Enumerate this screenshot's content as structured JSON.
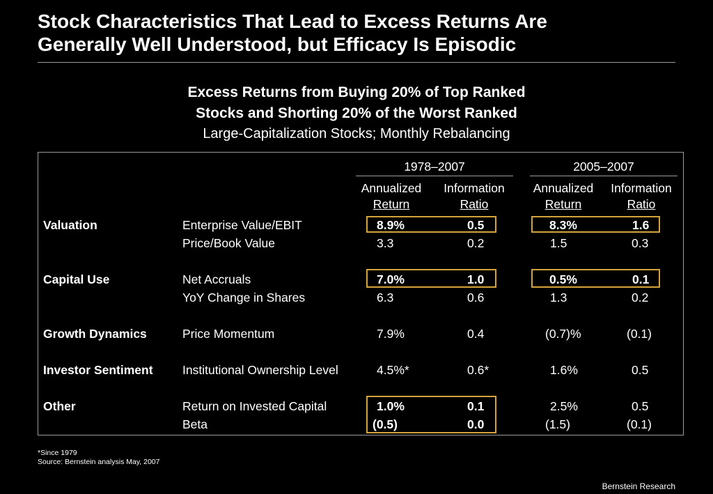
{
  "slide": {
    "title_line1": "Stock Characteristics That Lead to Excess Returns Are",
    "title_line2": "Generally Well Understood, but Efficacy Is Episodic",
    "subtitle_line1": "Excess Returns from Buying 20% of Top Ranked",
    "subtitle_line2": "Stocks and Shorting 20% of the Worst Ranked",
    "subtitle_desc": "Large-Capitalization Stocks; Monthly Rebalancing"
  },
  "table": {
    "period1": "1978–2007",
    "period2": "2005–2007",
    "col_ret_top": "Annualized",
    "col_ret_bottom": "Return",
    "col_ir_top": "Information",
    "col_ir_bottom": "Ratio",
    "rows": [
      {
        "category": "Valuation",
        "metric": "Enterprise Value/EBIT",
        "r1": "8.9%",
        "i1": "0.5",
        "r2": "8.3%",
        "i2": "1.6"
      },
      {
        "category": "",
        "metric": "Price/Book Value",
        "r1": "3.3",
        "i1": "0.2",
        "r2": "1.5",
        "i2": "0.3"
      },
      {
        "category": "Capital Use",
        "metric": "Net Accruals",
        "r1": "7.0%",
        "i1": "1.0",
        "r2": "0.5%",
        "i2": "0.1"
      },
      {
        "category": "",
        "metric": "YoY Change in Shares",
        "r1": "6.3",
        "i1": "0.6",
        "r2": "1.3",
        "i2": "0.2"
      },
      {
        "category": "Growth Dynamics",
        "metric": "Price Momentum",
        "r1": "7.9%",
        "i1": "0.4",
        "r2": "(0.7)%",
        "i2": "(0.1)"
      },
      {
        "category": "Investor Sentiment",
        "metric": "Institutional Ownership Level",
        "r1": "4.5%*",
        "i1": "0.6*",
        "r2": "1.6%",
        "i2": "0.5"
      },
      {
        "category": "Other",
        "metric": "Return on Invested Capital",
        "r1": "1.0%",
        "i1": "0.1",
        "r2": "2.5%",
        "i2": "0.5"
      },
      {
        "category": "",
        "metric": "Beta",
        "r1": "(0.5)",
        "i1": "0.0",
        "r2": "(1.5)",
        "i2": "(0.1)"
      }
    ]
  },
  "footer": {
    "footnote": "*Since 1979",
    "source": "Source: Bernstein analysis May, 2007",
    "brand": "Bernstein Research"
  },
  "colors": {
    "background": "#000000",
    "text": "#ffffff",
    "highlight_border": "#d4a33a",
    "rule": "#9a9a9a"
  }
}
